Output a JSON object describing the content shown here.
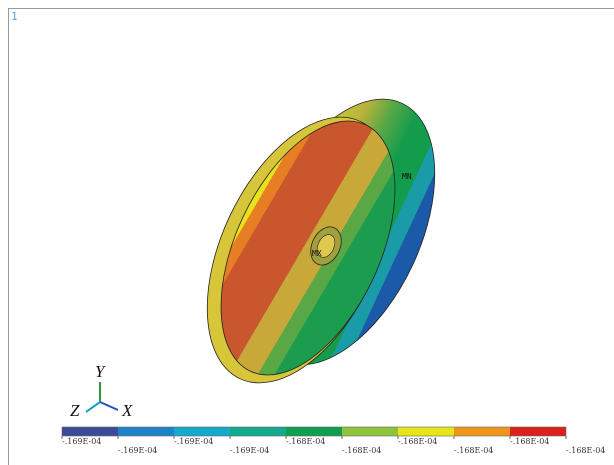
{
  "window_number": "1",
  "labels": {
    "min": "MN",
    "max": "MX"
  },
  "triad": {
    "y": "Y",
    "z": "Z",
    "x": "X"
  },
  "legend": {
    "colors": [
      "#3b4b9a",
      "#1e82c8",
      "#17a9cc",
      "#13a98c",
      "#0f9f4e",
      "#8ec43b",
      "#e6e51c",
      "#ee951c",
      "#dd201c"
    ],
    "labels": [
      "-.169E-04",
      "-.169E-04",
      "-.169E-04",
      "-.169E-04",
      "-.168E-04",
      "-.168E-04",
      "-.168E-04",
      "-.168E-04",
      "-.168E-04",
      "-.168E-04"
    ]
  }
}
